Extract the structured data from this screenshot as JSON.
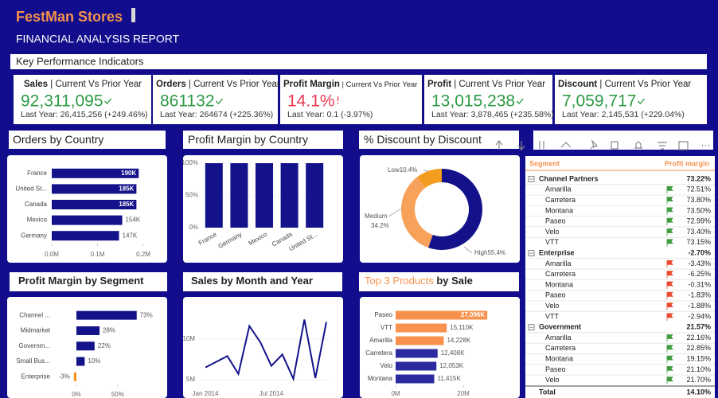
{
  "header": {
    "title": "FestMan Stores",
    "subtitle": "FINANCIAL ANALYSIS REPORT",
    "section": "Key Performance Indicators"
  },
  "kpis": [
    {
      "label": "Sales",
      "label_suffix": " | Current Vs Prior Year",
      "value": "92,311,095",
      "prior": "Last Year: 26,415,256 (+249.46%)",
      "status": "good"
    },
    {
      "label": "Orders",
      "label_suffix": " | Current Vs Prior Year",
      "value": "861132",
      "prior": "Last Year: 264674 (+225.36%)",
      "status": "good"
    },
    {
      "label": "Profit Margin",
      "label_suffix": " | Current Vs Prior Year",
      "value": "14.1%",
      "prior": "Last Year: 0.1 (-3.97%)",
      "status": "bad"
    },
    {
      "label": "Profit",
      "label_suffix": " | Current Vs Prior Year",
      "value": "13,015,238",
      "prior": "Last Year: 3,878,465 (+235.58%)",
      "status": "good"
    },
    {
      "label": "Discount",
      "label_suffix": " | Current Vs Prior Year",
      "value": "7,059,717",
      "prior": "Last Year: 2,145,531 (+229.04%)",
      "status": "good"
    }
  ],
  "chart_data": [
    {
      "type": "hbar",
      "title": "Orders by Country",
      "categories": [
        "France",
        "United St...",
        "Canada",
        "Mexico",
        "Germany"
      ],
      "values": [
        190000,
        185000,
        185000,
        154000,
        147000
      ],
      "value_labels": [
        "190K",
        "185K",
        "185K",
        "154K",
        "147K"
      ],
      "label_inside": [
        true,
        true,
        true,
        false,
        false
      ],
      "color": "#13128b",
      "xlim": [
        0,
        200000
      ],
      "xticks": [
        {
          "value": 0,
          "label": "0.0M"
        },
        {
          "value": 100000,
          "label": "0.1M"
        },
        {
          "value": 200000,
          "label": "0.2M"
        }
      ]
    },
    {
      "type": "column",
      "title": "Profit Margin by Country",
      "categories": [
        "France",
        "Germany",
        "Mexico",
        "Canada",
        "United St..."
      ],
      "values": [
        100,
        100,
        100,
        100,
        100
      ],
      "color": "#13128b",
      "ylim": [
        0,
        100
      ],
      "yticks": [
        {
          "value": 0,
          "label": "0%"
        },
        {
          "value": 50,
          "label": "50%"
        },
        {
          "value": 100,
          "label": "100%"
        }
      ]
    },
    {
      "type": "donut",
      "title": "% Discount by Discount",
      "categories": [
        "High",
        "Medium",
        "Low"
      ],
      "values": [
        55.4,
        34.2,
        10.4
      ],
      "value_labels": [
        "55.4%",
        "34.2%",
        "10.4%"
      ],
      "colors": [
        "#13128b",
        "#f7a15a",
        "#f39c1f"
      ]
    },
    {
      "type": "hbar",
      "title": "Profit Margin by Segment",
      "categories": [
        "Channel ...",
        "Midmarket",
        "Governm...",
        "Small Bus...",
        "Enterprise"
      ],
      "values": [
        73,
        28,
        22,
        10,
        -3
      ],
      "value_labels": [
        "73%",
        "28%",
        "22%",
        "10%",
        "-3%"
      ],
      "color": "#13128b",
      "negative_color": "#f7941d",
      "xlim": [
        -5,
        80
      ],
      "xticks": [
        {
          "value": 0,
          "label": "0%"
        },
        {
          "value": 50,
          "label": "50%"
        }
      ]
    },
    {
      "type": "line",
      "title": "Sales by Month  and Year",
      "categories": [
        "Jan 2014",
        null,
        null,
        null,
        null,
        null,
        "Jul 2014",
        null,
        null,
        null,
        null,
        null
      ],
      "values": [
        6500000,
        7200000,
        7900000,
        5700000,
        11600000,
        9600000,
        6700000,
        8100000,
        5100000,
        12400000,
        5200000,
        12100000
      ],
      "color": "#13128b",
      "ylim": [
        4700000,
        14500000
      ],
      "yticks": [
        {
          "value": 5000000,
          "label": "5M"
        },
        {
          "value": 10000000,
          "label": "10M"
        }
      ]
    },
    {
      "type": "hbar",
      "title_highlight": "Top 3 Products",
      "title": " by Sale",
      "categories": [
        "Paseo",
        "VTT",
        "Amarilla",
        "Carretera",
        "Velo",
        "Montana"
      ],
      "values": [
        27096000,
        15110000,
        14228000,
        12408000,
        12053000,
        11415000
      ],
      "value_labels": [
        "27,096K",
        "15,110K",
        "14,228K",
        "12,408K",
        "12,053K",
        "11,415K"
      ],
      "label_inside": [
        true,
        false,
        false,
        false,
        false,
        false
      ],
      "colors": [
        "#f7914d",
        "#f7914d",
        "#f7914d",
        "#2b2a9e",
        "#2b2a9e",
        "#2b2a9e"
      ],
      "xlim": [
        0,
        30000000
      ],
      "xticks": [
        {
          "value": 0,
          "label": "0M"
        },
        {
          "value": 20000000,
          "label": "20M"
        }
      ]
    }
  ],
  "table": {
    "columns": [
      "Segment",
      "Profit margin"
    ],
    "groups": [
      {
        "name": "Channel Partners",
        "value": "73.22%",
        "flag": "green",
        "rows": [
          [
            "Amarilla",
            "72.51%"
          ],
          [
            "Carretera",
            "73.80%"
          ],
          [
            "Montana",
            "73.50%"
          ],
          [
            "Paseo",
            "72.99%"
          ],
          [
            "Velo",
            "73.40%"
          ],
          [
            "VTT",
            "73.15%"
          ]
        ]
      },
      {
        "name": "Enterprise",
        "value": "-2.70%",
        "flag": "red",
        "rows": [
          [
            "Amarilla",
            "-3.43%"
          ],
          [
            "Carretera",
            "-6.25%"
          ],
          [
            "Montana",
            "-0.31%"
          ],
          [
            "Paseo",
            "-1.83%"
          ],
          [
            "Velo",
            "-1.88%"
          ],
          [
            "VTT",
            "-2.94%"
          ]
        ]
      },
      {
        "name": "Government",
        "value": "21.57%",
        "flag": "green",
        "rows": [
          [
            "Amarilla",
            "22.16%"
          ],
          [
            "Carretera",
            "22.85%"
          ],
          [
            "Montana",
            "19.15%"
          ],
          [
            "Paseo",
            "21.10%"
          ],
          [
            "Velo",
            "21.70%"
          ]
        ]
      }
    ],
    "total": [
      "Total",
      "14.10%"
    ]
  }
}
